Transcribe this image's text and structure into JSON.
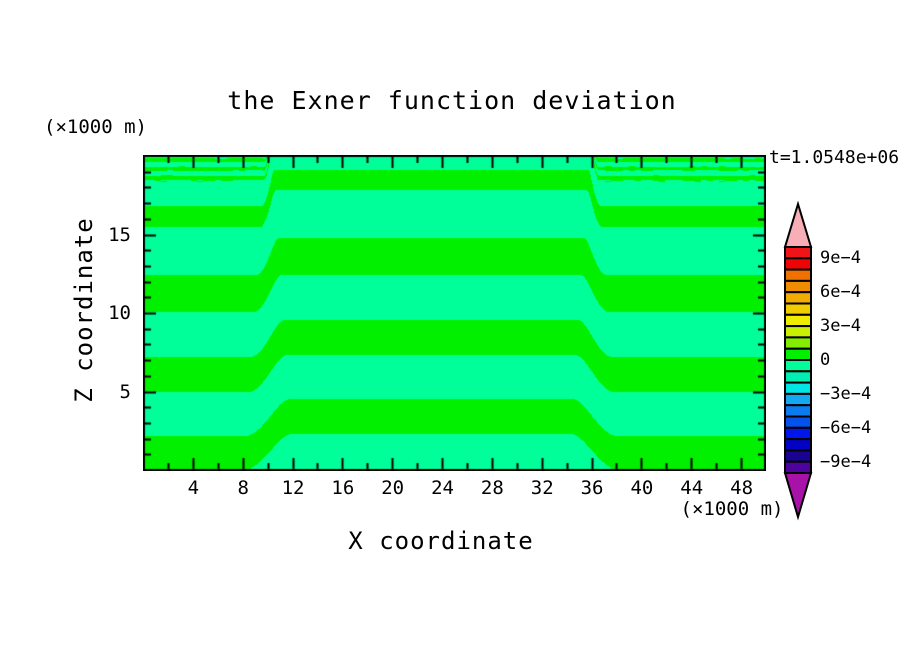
{
  "title": "the Exner function deviation",
  "time_label": "t=1.0548e+06",
  "x_axis": {
    "label": "X coordinate",
    "unit_note": "(×1000 m)",
    "tick_labels": [
      "4",
      "8",
      "12",
      "16",
      "20",
      "24",
      "28",
      "32",
      "36",
      "40",
      "44",
      "48"
    ],
    "tick_values": [
      4,
      8,
      12,
      16,
      20,
      24,
      28,
      32,
      36,
      40,
      44,
      48
    ],
    "minor_step": 2,
    "range": [
      0,
      50
    ]
  },
  "z_axis": {
    "label": "Z coordinate",
    "unit_note": "(×1000 m)",
    "tick_labels": [
      "5",
      "10",
      "15"
    ],
    "tick_values": [
      5,
      10,
      15
    ],
    "minor_step": 1,
    "range": [
      0,
      20
    ]
  },
  "colorbar": {
    "labels": [
      "9e−4",
      "6e−4",
      "3e−4",
      "0",
      "−3e−4",
      "−6e−4",
      "−9e−4"
    ],
    "label_boundary_index": [
      1,
      4,
      7,
      10,
      13,
      16,
      19
    ],
    "segment_colors": [
      "#F01418",
      "#EE0404",
      "#F07000",
      "#F08C00",
      "#F0AC00",
      "#F0CC00",
      "#F0EC00",
      "#C8F000",
      "#84EC00",
      "#00F000",
      "#00FF99",
      "#00EEB4",
      "#00E6E6",
      "#14A8F2",
      "#0A7CF0",
      "#0452EC",
      "#0016EC",
      "#0202C4",
      "#1A0292",
      "#4E029E"
    ],
    "over_color": "#F8AEB6",
    "under_color": "#A812A8",
    "frame_color": "#000000"
  },
  "chart_data": {
    "type": "heatmap",
    "title": "the Exner function deviation",
    "xlabel": "X coordinate (×1000 m)",
    "ylabel": "Z coordinate (×1000 m)",
    "time_annotation": "t=1.0548e+06",
    "x_range_km": [
      0,
      50
    ],
    "z_range_km": [
      0,
      20
    ],
    "contour_interval": 0.0001,
    "colorbar_min": -0.001,
    "colorbar_max": 0.001,
    "field_description": "Deviation stays within ±1e-4: alternating horizontal bands of the two levels adjacent to zero; bands in the middle section (x≈10–36 km) are shifted upward ≈2.3 km with smooth S-shaped steps that sharpen with height; stripe spacing compresses and becomes noisy/speckled near the model top (z≈18–20 km).",
    "positive_band_color": "#00F000",
    "negative_band_color": "#00FF99",
    "band_model": {
      "phase_points": [
        [
          0,
          0
        ],
        [
          5,
          1
        ],
        [
          10.1,
          2
        ],
        [
          15.5,
          3
        ],
        [
          18.5,
          4
        ],
        [
          19.1,
          5
        ],
        [
          19.65,
          6
        ],
        [
          20.2,
          7
        ]
      ],
      "positive_fraction": 0.44,
      "step_x_km": [
        10.1,
        36.1
      ],
      "step_shift_z_km": 2.35,
      "step_halfwidth_base_km": 2.1,
      "step_halfwidth_slope_per_km": 0.088,
      "step_halfwidth_min_km": 0.32,
      "noise_z_band_km": [
        17.6,
        19.95
      ],
      "noise_amp": 0.1
    },
    "frame_color": "#000000",
    "grid": false,
    "legend_position": "right-colorbar"
  }
}
